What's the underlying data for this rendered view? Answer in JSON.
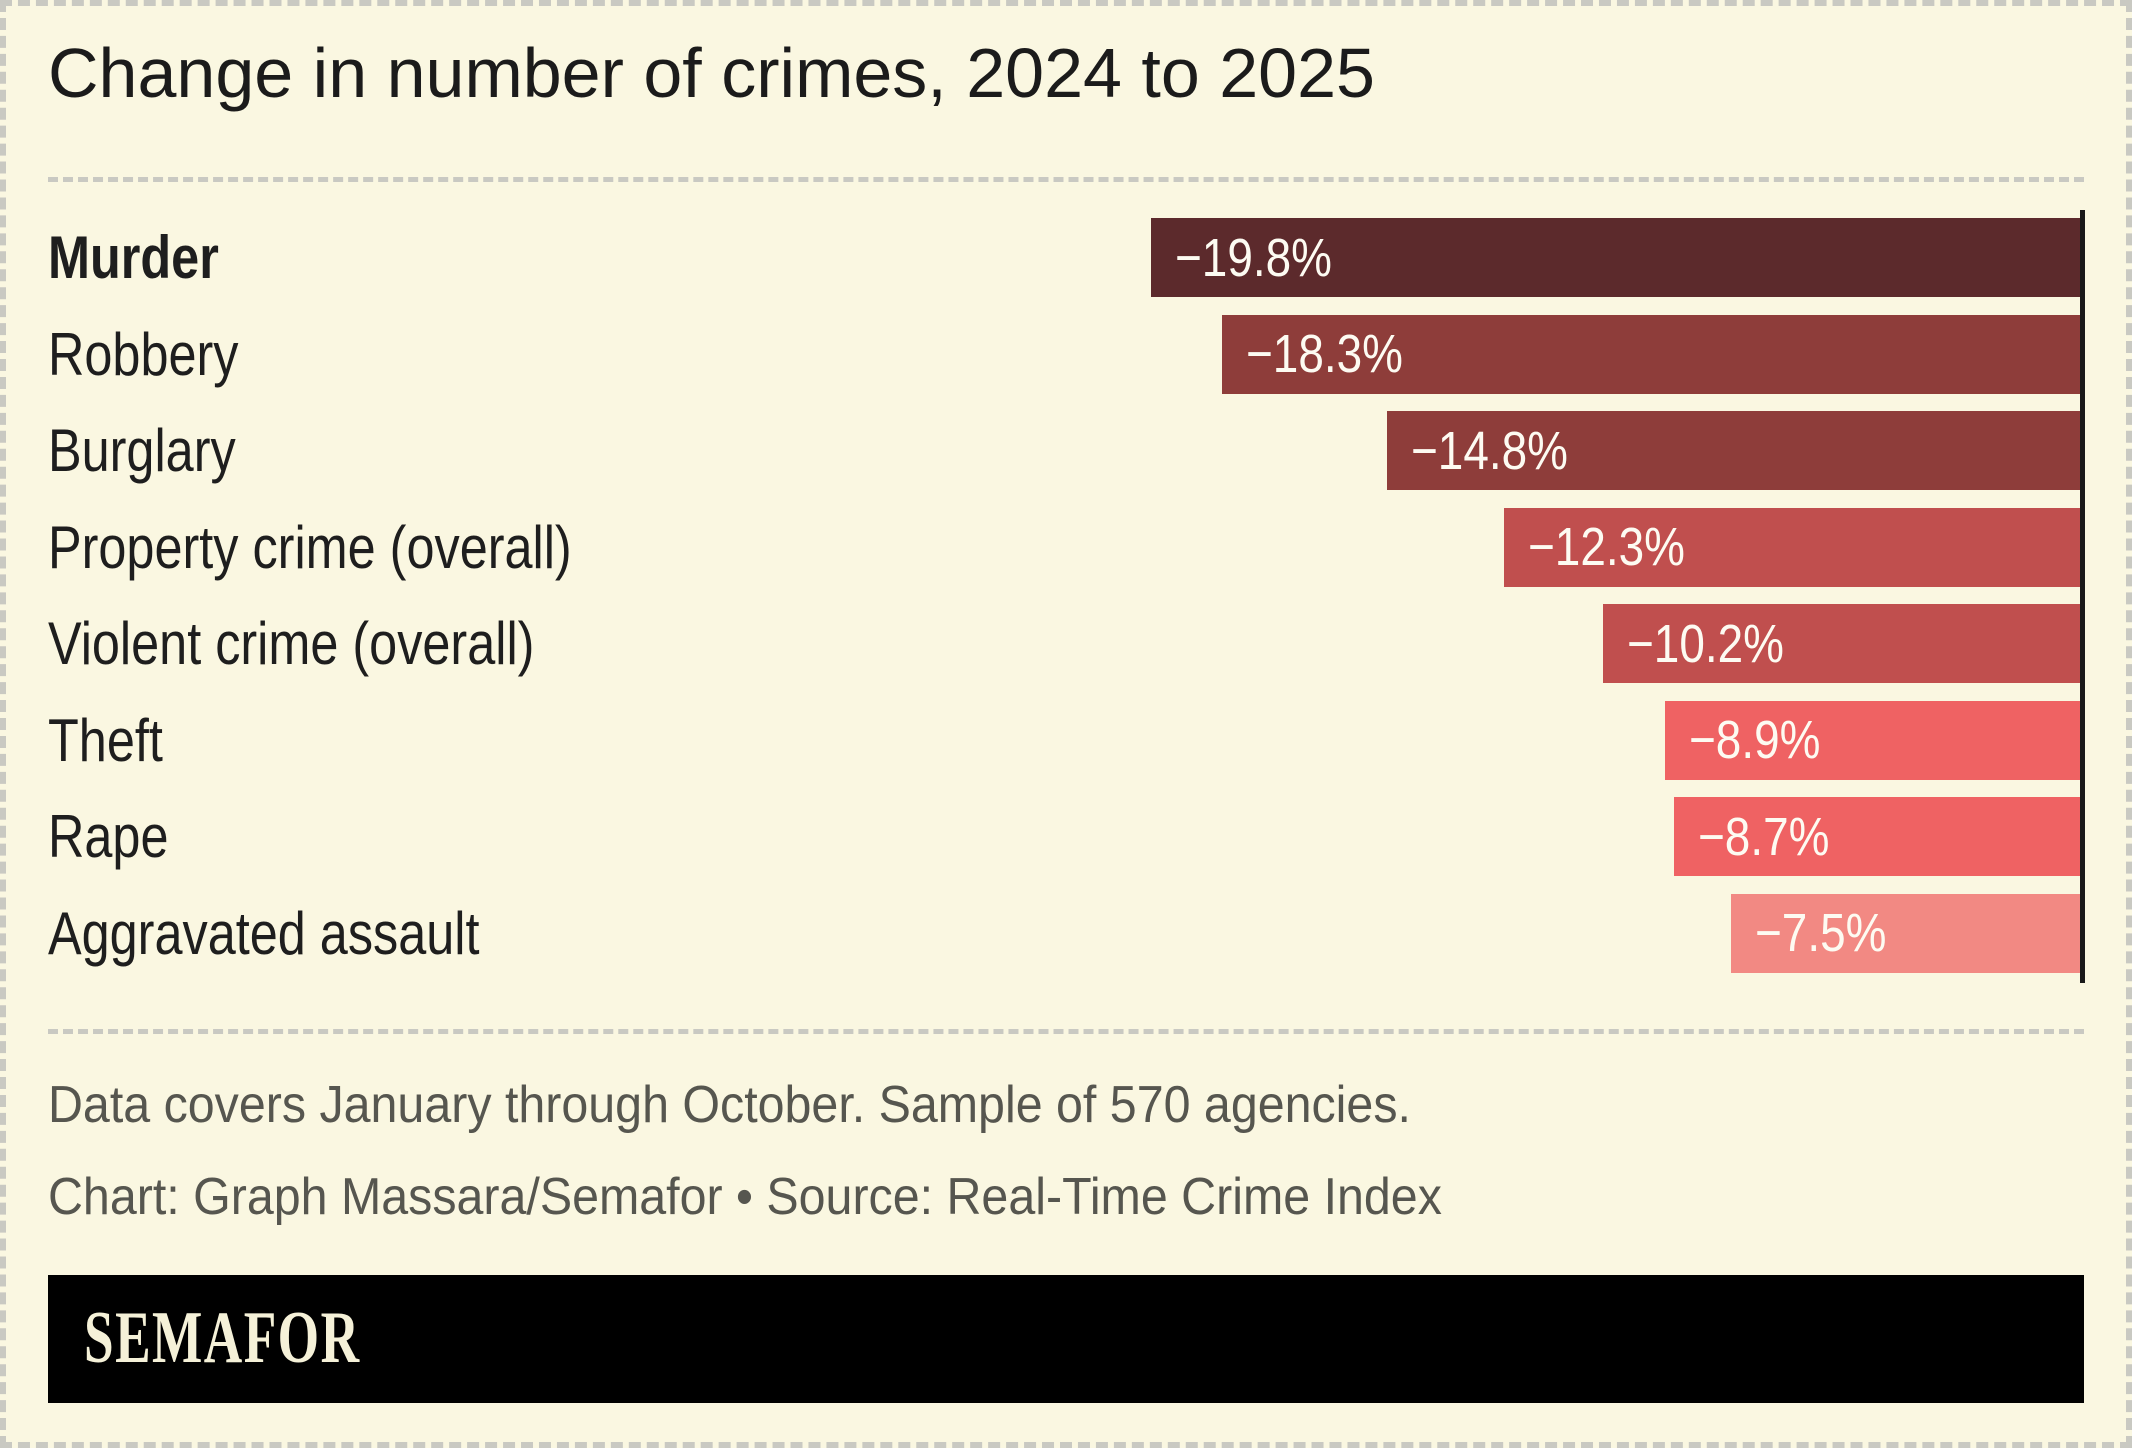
{
  "title": "Change in number of crimes, 2024 to 2025",
  "notes": {
    "line1": "Data covers January through October. Sample of 570 agencies.",
    "line2": "Chart: Graph Massara/Semafor • Source: Real-Time Crime Index"
  },
  "logo": {
    "text": "SEMAFOR"
  },
  "colors": {
    "background": "#faf7e1",
    "border_dash": "#c9c9c2",
    "axis_line": "#191919",
    "title_text": "#1b1b1b",
    "category_text": "#1e1e1e",
    "note_text": "#56564f",
    "bar_value_text": "#fdfbf2",
    "logo_background": "#000000",
    "logo_text": "#f5f1d8"
  },
  "chart_data": {
    "type": "bar",
    "orientation": "horizontal",
    "title": "Change in number of crimes, 2024 to 2025",
    "categories": [
      "Murder",
      "Robbery",
      "Burglary",
      "Property crime (overall)",
      "Violent crime (overall)",
      "Theft",
      "Rape",
      "Aggravated assault"
    ],
    "values": [
      -19.8,
      -18.3,
      -14.8,
      -12.3,
      -10.2,
      -8.9,
      -8.7,
      -7.5
    ],
    "value_labels": [
      "−19.8%",
      "−18.3%",
      "−14.8%",
      "−12.3%",
      "−10.2%",
      "−8.9%",
      "−8.7%",
      "−7.5%"
    ],
    "bar_colors": [
      "#5c2a2c",
      "#8e3d3a",
      "#8e3d3a",
      "#c04f4e",
      "#c04f4e",
      "#ef6263",
      "#ef6263",
      "#f28983"
    ],
    "unit": "%",
    "xlim": [
      -20,
      0
    ],
    "bars_anchored_at": 0,
    "grid": false,
    "legend": false,
    "value_labels_inside_bars": true,
    "emphasized_category": "Murder"
  }
}
